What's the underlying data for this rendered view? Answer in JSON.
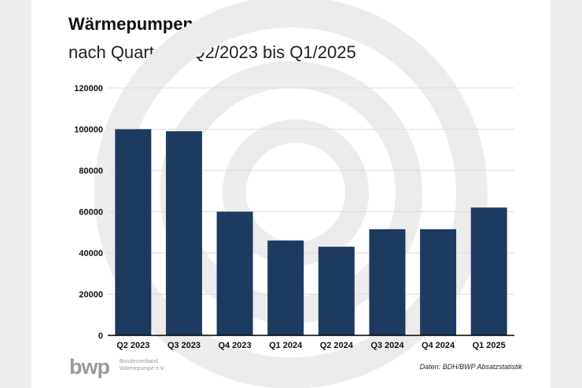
{
  "header": {
    "title": "Wärmepumpen-Absatz",
    "subtitle": "nach Quartalen Q2/2023 bis Q1/2025"
  },
  "footer": {
    "logo_text": "bwp",
    "logo_subline_1": "Bundesverband",
    "logo_subline_2": "Wärmepumpe e.V.",
    "source": "Daten: BDH/BWP Absatzstatistik"
  },
  "colors": {
    "bar": "#1d3a60",
    "grid": "#dddddd",
    "axis": "#000000",
    "watermark": "#ececec",
    "logo": "#9a9a9a"
  },
  "chart_data": {
    "type": "bar",
    "title": "Wärmepumpen-Absatz",
    "subtitle": "nach Quartalen Q2/2023 bis Q1/2025",
    "categories": [
      "Q2 2023",
      "Q3 2023",
      "Q4 2023",
      "Q1 2024",
      "Q2 2024",
      "Q3 2024",
      "Q4 2024",
      "Q1 2025"
    ],
    "values": [
      100000,
      99000,
      60000,
      46000,
      43000,
      51500,
      51500,
      62000
    ],
    "xlabel": "",
    "ylabel": "",
    "ylim": [
      0,
      120000
    ],
    "yticks": [
      "0",
      "20000",
      "40000",
      "60000",
      "80000",
      "100000",
      "120000"
    ],
    "grid": true,
    "legend": "none"
  }
}
